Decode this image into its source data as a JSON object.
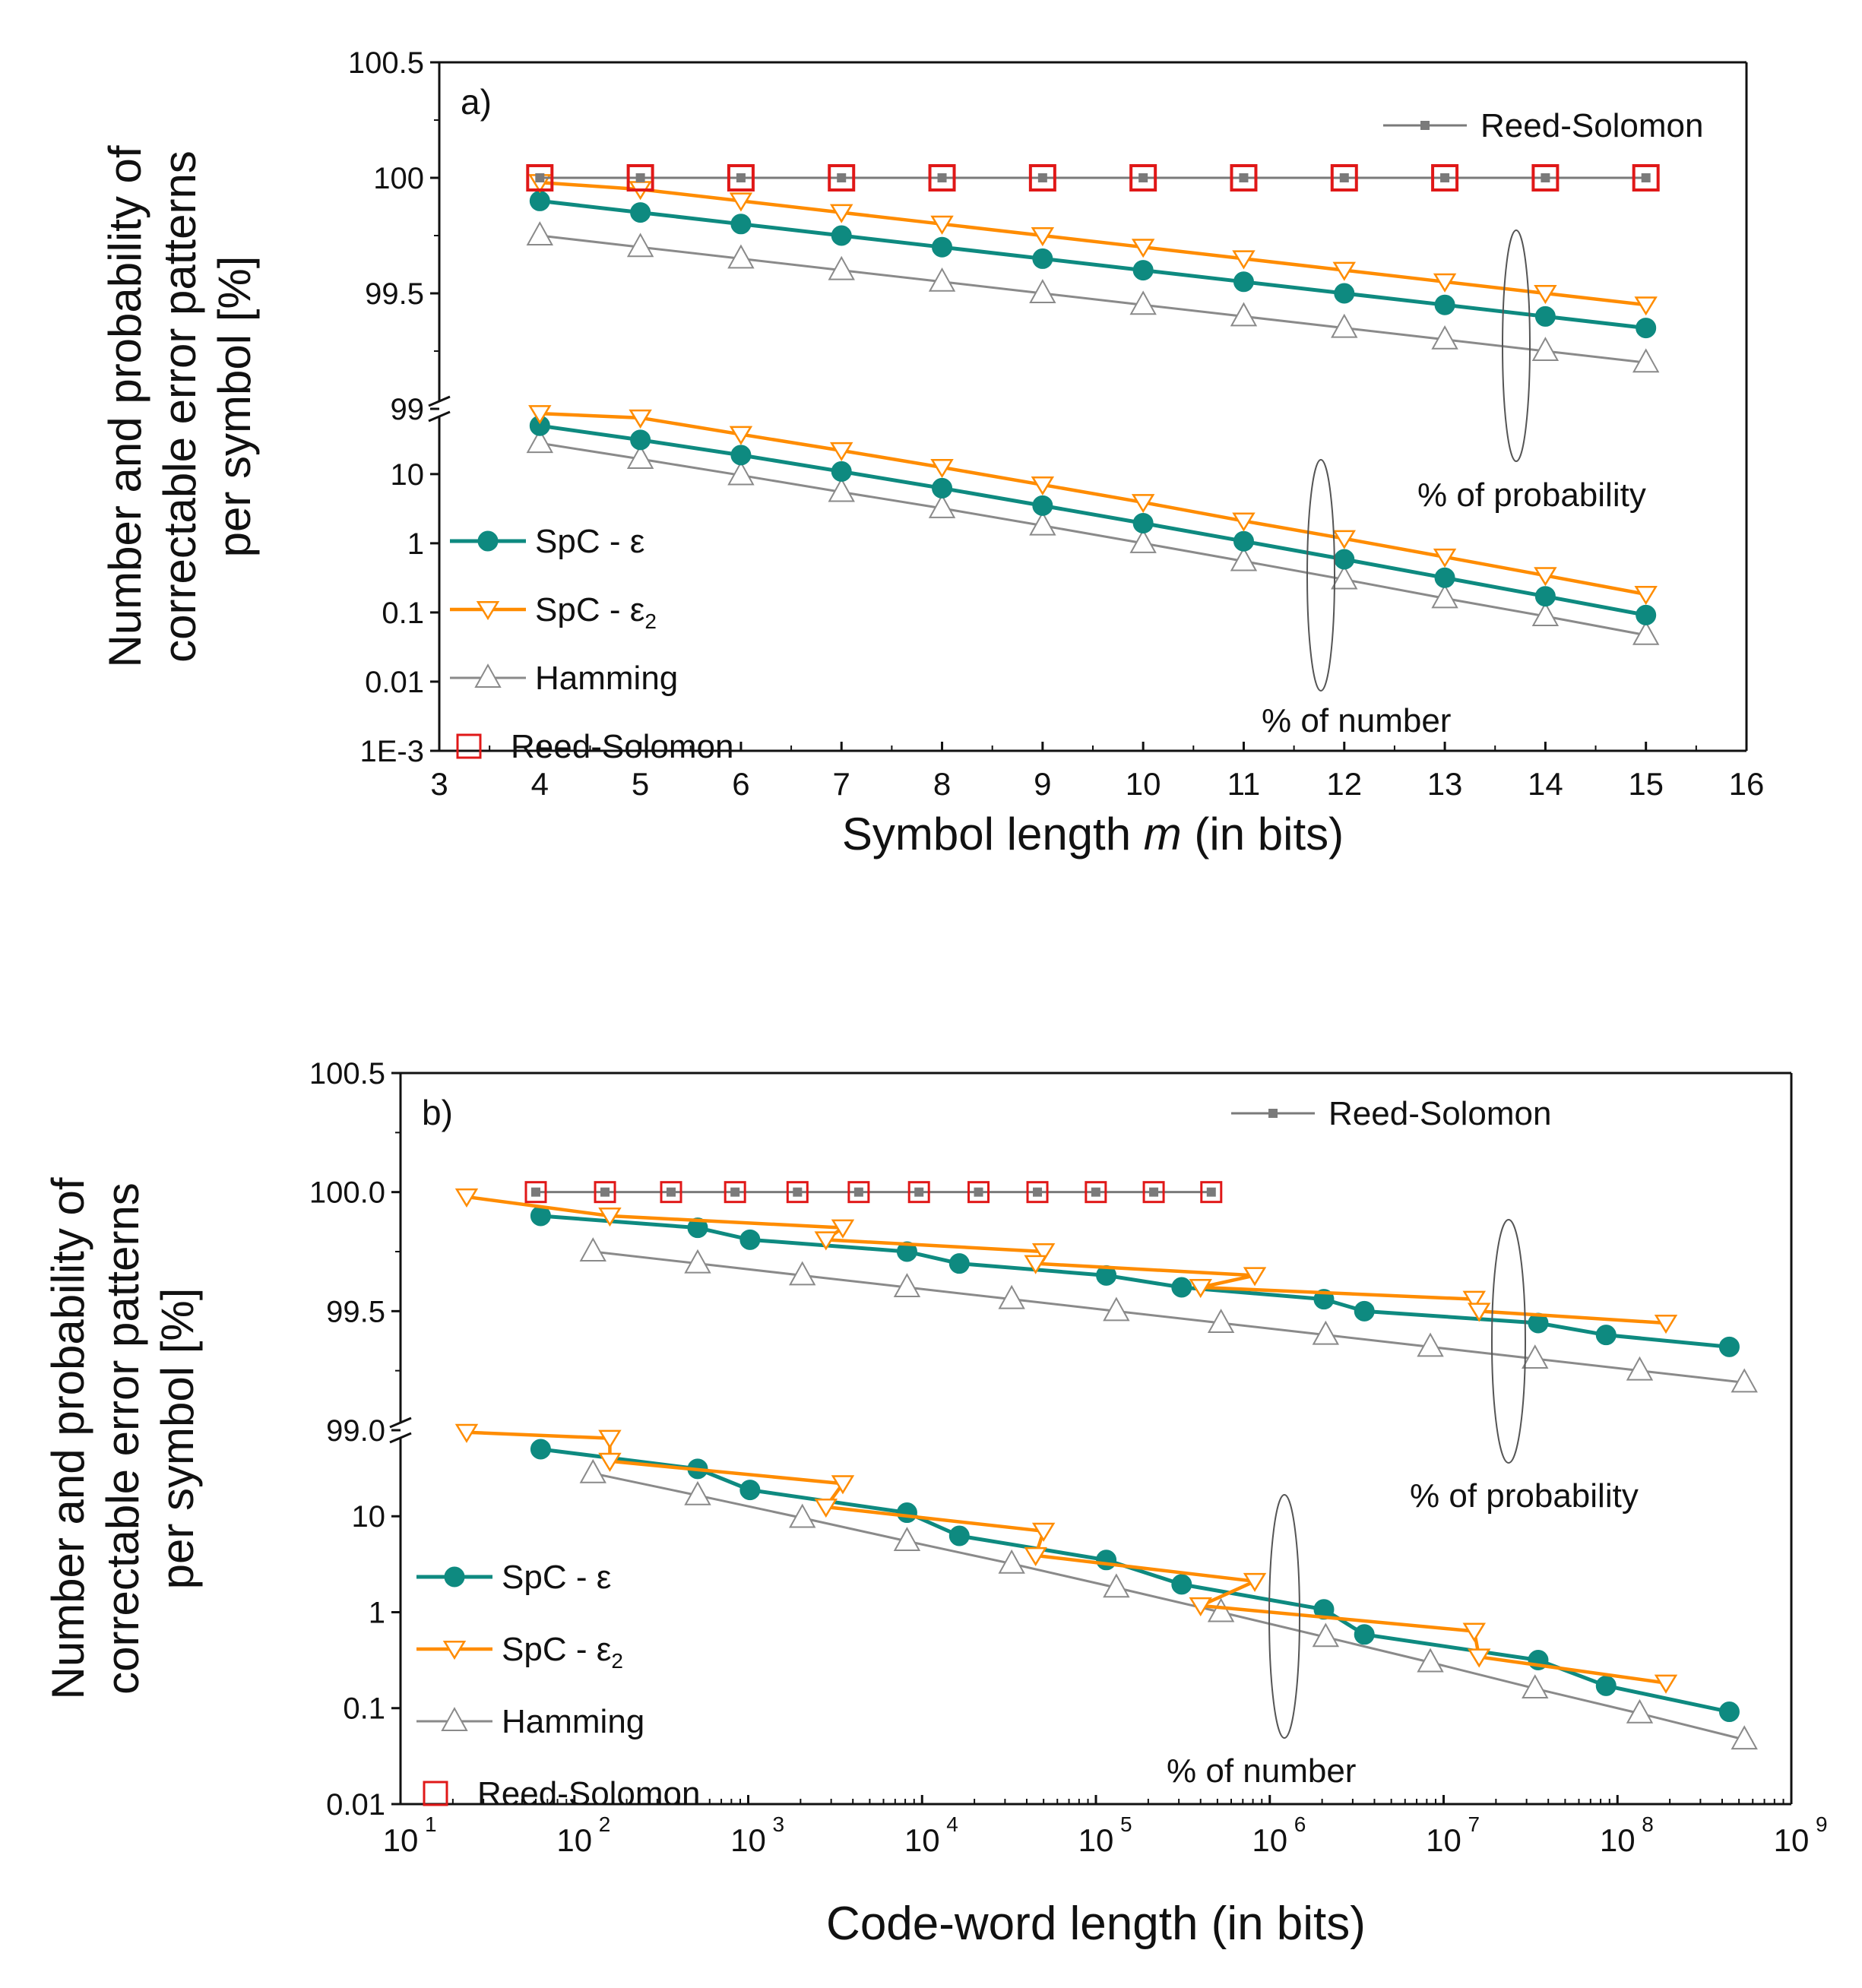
{
  "chart_data": [
    {
      "panel_label": "a)",
      "type": "line",
      "xlabel_pre": "Symbol length ",
      "xlabel_var": "m",
      "xlabel_post": " (in bits)",
      "ylabel_line1": "Number and probability of",
      "ylabel_line2": "correctable error patterns",
      "ylabel_line3": "per symbol [%]",
      "xlim": [
        3,
        16
      ],
      "x_ticks": [
        "3",
        "4",
        "5",
        "6",
        "7",
        "8",
        "9",
        "10",
        "11",
        "12",
        "13",
        "14",
        "15",
        "16"
      ],
      "upper_ylim": [
        99,
        100.5
      ],
      "upper_ticks": [
        "99",
        "99.5",
        "100",
        "100.5"
      ],
      "lower_ylim": [
        0.001,
        60
      ],
      "lower_ticks": [
        "1E-3",
        "0.01",
        "0.1",
        "1",
        "10"
      ],
      "legend_top": "Reed-Solomon",
      "legend_bottom": {
        "spc_eps": "SpC - ε",
        "spc_eps2": "SpC - ε",
        "spc_eps2_sub": "2",
        "hamming": "Hamming",
        "rs": "Reed-Solomon"
      },
      "annotation_prob": "% of probability",
      "annotation_num": "% of number",
      "series_probability": [
        {
          "name": "Reed-Solomon",
          "x": [
            4,
            5,
            6,
            7,
            8,
            9,
            10,
            11,
            12,
            13,
            14,
            15
          ],
          "values": [
            100,
            100,
            100,
            100,
            100,
            100,
            100,
            100,
            100,
            100,
            100,
            100
          ]
        },
        {
          "name": "SpC - ε",
          "x": [
            4,
            5,
            6,
            7,
            8,
            9,
            10,
            11,
            12,
            13,
            14,
            15
          ],
          "values": [
            99.9,
            99.85,
            99.8,
            99.75,
            99.7,
            99.65,
            99.6,
            99.55,
            99.5,
            99.45,
            99.4,
            99.35
          ]
        },
        {
          "name": "SpC - ε2",
          "x": [
            4,
            5,
            6,
            7,
            8,
            9,
            10,
            11,
            12,
            13,
            14,
            15
          ],
          "values": [
            99.98,
            99.95,
            99.9,
            99.85,
            99.8,
            99.75,
            99.7,
            99.65,
            99.6,
            99.55,
            99.5,
            99.45
          ]
        },
        {
          "name": "Hamming",
          "x": [
            4,
            5,
            6,
            7,
            8,
            9,
            10,
            11,
            12,
            13,
            14,
            15
          ],
          "values": [
            99.75,
            99.7,
            99.65,
            99.6,
            99.55,
            99.5,
            99.45,
            99.4,
            99.35,
            99.3,
            99.25,
            99.2
          ]
        }
      ],
      "series_number": [
        {
          "name": "SpC - ε",
          "x": [
            4,
            5,
            6,
            7,
            8,
            9,
            10,
            11,
            12,
            13,
            14,
            15
          ],
          "values": [
            50,
            31.2,
            18.8,
            10.9,
            6.25,
            3.5,
            1.95,
            1.07,
            0.586,
            0.317,
            0.171,
            0.0916
          ]
        },
        {
          "name": "SpC - ε2",
          "x": [
            4,
            5,
            6,
            7,
            8,
            9,
            10,
            11,
            12,
            13,
            14,
            15
          ],
          "values": [
            75,
            65,
            37.5,
            21.9,
            12.5,
            7.0,
            3.9,
            2.1,
            1.17,
            0.634,
            0.342,
            0.183
          ]
        },
        {
          "name": "Hamming",
          "x": [
            4,
            5,
            6,
            7,
            8,
            9,
            10,
            11,
            12,
            13,
            14,
            15
          ],
          "values": [
            28,
            16.5,
            9.6,
            5.5,
            3.2,
            1.8,
            1.0,
            0.55,
            0.3,
            0.16,
            0.088,
            0.047
          ]
        }
      ]
    },
    {
      "panel_label": "b)",
      "type": "line",
      "xlabel": "Code-word length (in bits)",
      "ylabel_line1": "Number and probability of",
      "ylabel_line2": "correctable error patterns",
      "ylabel_line3": "per symbol [%]",
      "xlim_log10": [
        1,
        9
      ],
      "x_tick_base": "10",
      "x_tick_exponents": [
        "1",
        "2",
        "3",
        "4",
        "5",
        "6",
        "7",
        "8",
        "9"
      ],
      "upper_ylim": [
        99,
        100.5
      ],
      "upper_ticks": [
        "99.0",
        "99.5",
        "100.0",
        "100.5"
      ],
      "lower_ylim": [
        0.01,
        60
      ],
      "lower_ticks": [
        "0.01",
        "0.1",
        "1",
        "10"
      ],
      "legend_top": "Reed-Solomon",
      "legend_bottom": {
        "spc_eps": "SpC - ε",
        "spc_eps2": "SpC - ε",
        "spc_eps2_sub": "2",
        "hamming": "Hamming",
        "rs": "Reed-Solomon"
      },
      "annotation_prob": "% of probability",
      "annotation_num": "% of number",
      "series_probability": [
        {
          "name": "Reed-Solomon",
          "x": [
            60,
            150,
            360,
            840,
            1920,
            4320,
            9600,
            21120,
            46080,
            99840,
            215040,
            460800
          ],
          "values": [
            100,
            100,
            100,
            100,
            100,
            100,
            100,
            100,
            100,
            100,
            100,
            100
          ]
        },
        {
          "name": "SpC - ε",
          "x": [
            64,
            512,
            1024,
            8192,
            16384,
            114688,
            311296,
            2048000,
            3500000,
            35000000,
            86000000,
            440000000
          ],
          "values": [
            99.9,
            99.85,
            99.8,
            99.75,
            99.7,
            99.65,
            99.6,
            99.55,
            99.5,
            99.45,
            99.4,
            99.35
          ]
        },
        {
          "name": "SpC - ε2",
          "x": [
            24,
            160,
            3500,
            2800,
            50000,
            45000,
            820000,
            400000,
            15000000,
            16000000,
            190000000
          ],
          "values": [
            99.98,
            99.9,
            99.85,
            99.8,
            99.75,
            99.7,
            99.65,
            99.6,
            99.55,
            99.5,
            99.45
          ]
        },
        {
          "name": "Hamming",
          "x": [
            128,
            512,
            2048,
            8192,
            32768,
            131072,
            524288,
            2097152,
            8388608,
            33554432,
            134217728,
            536870912
          ],
          "values": [
            99.75,
            99.7,
            99.65,
            99.6,
            99.55,
            99.5,
            99.45,
            99.4,
            99.35,
            99.3,
            99.25,
            99.2
          ]
        }
      ],
      "series_number": [
        {
          "name": "SpC - ε",
          "x": [
            64,
            512,
            1024,
            8192,
            16384,
            114688,
            311296,
            2048000,
            3500000,
            35000000,
            86000000,
            440000000
          ],
          "values": [
            50,
            31.2,
            18.8,
            10.9,
            6.25,
            3.5,
            1.95,
            1.07,
            0.586,
            0.317,
            0.171,
            0.0916
          ]
        },
        {
          "name": "SpC - ε2",
          "x": [
            24,
            160,
            160,
            3500,
            2800,
            50000,
            45000,
            820000,
            400000,
            15000000,
            16000000,
            190000000
          ],
          "values": [
            75,
            65,
            37.5,
            21.9,
            12.5,
            7.0,
            3.9,
            2.1,
            1.17,
            0.634,
            0.342,
            0.183
          ]
        },
        {
          "name": "Hamming",
          "x": [
            128,
            512,
            2048,
            8192,
            32768,
            131072,
            524288,
            2097152,
            8388608,
            33554432,
            134217728,
            536870912
          ],
          "values": [
            28,
            16.5,
            9.6,
            5.5,
            3.2,
            1.8,
            1.0,
            0.55,
            0.3,
            0.16,
            0.088,
            0.047
          ]
        }
      ]
    }
  ]
}
